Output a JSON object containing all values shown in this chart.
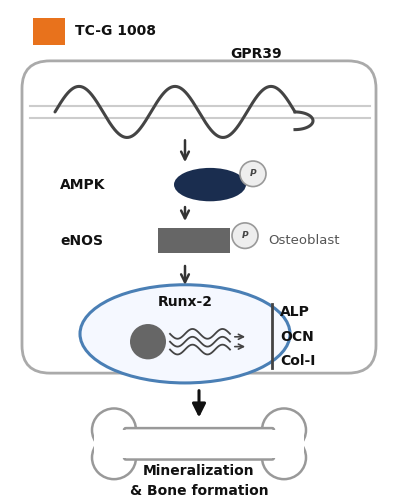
{
  "background_color": "#ffffff",
  "tc_g_label": "TC-G 1008",
  "gpr39_label": "GPR39",
  "ampk_label": "AMPK",
  "enos_label": "eNOS",
  "osteoblast_label": "Osteoblast",
  "runx2_label": "Runx-2",
  "alp_label": "ALP",
  "ocn_label": "OCN",
  "col1_label": "Col-I",
  "mineral_label": "Mineralization\n& Bone formation",
  "orange_box_color": "#e8721c",
  "ampk_ellipse_color": "#1a2d4f",
  "enos_rect_color": "#666666",
  "nucleus_ellipse_color": "#4a7fb5",
  "arrow_color": "#333333",
  "cell_edge_color": "#aaaaaa",
  "cell_face_color": "#ffffff",
  "wave_color": "#444444",
  "p_face_color": "#eeeeee",
  "p_edge_color": "#999999",
  "bone_edge_color": "#999999"
}
